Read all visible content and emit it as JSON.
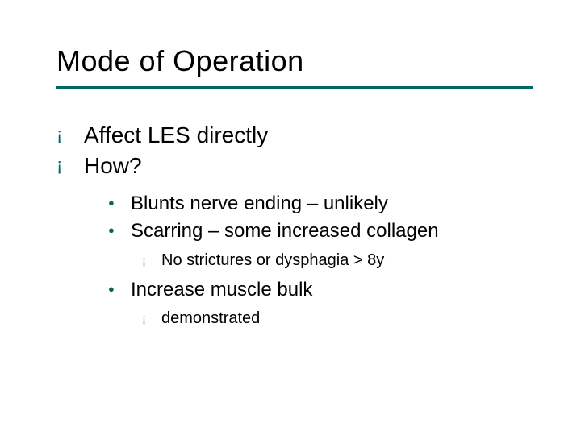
{
  "colors": {
    "accent": "#006666",
    "text": "#000000",
    "background": "#ffffff"
  },
  "fonts": {
    "family": "Verdana",
    "title_size_pt": 36,
    "body_size_pt": 28,
    "lvl2_size_pt": 24,
    "lvl3_size_pt": 20
  },
  "slide": {
    "title": "Mode of Operation",
    "bullets_lvl1": [
      {
        "text": "Affect LES directly"
      },
      {
        "text": "How?"
      }
    ],
    "bullets_lvl2_a": [
      {
        "text": "Blunts nerve ending – unlikely"
      },
      {
        "text": "Scarring – some increased collagen"
      }
    ],
    "bullets_lvl3_a": [
      {
        "text": "No strictures or dysphagia > 8y"
      }
    ],
    "bullets_lvl2_b": [
      {
        "text": "Increase muscle bulk"
      }
    ],
    "bullets_lvl3_b": [
      {
        "text": " demonstrated"
      }
    ]
  },
  "bullet_glyphs": {
    "lvl1": "¡",
    "lvl2": "●",
    "lvl3": "¡"
  }
}
